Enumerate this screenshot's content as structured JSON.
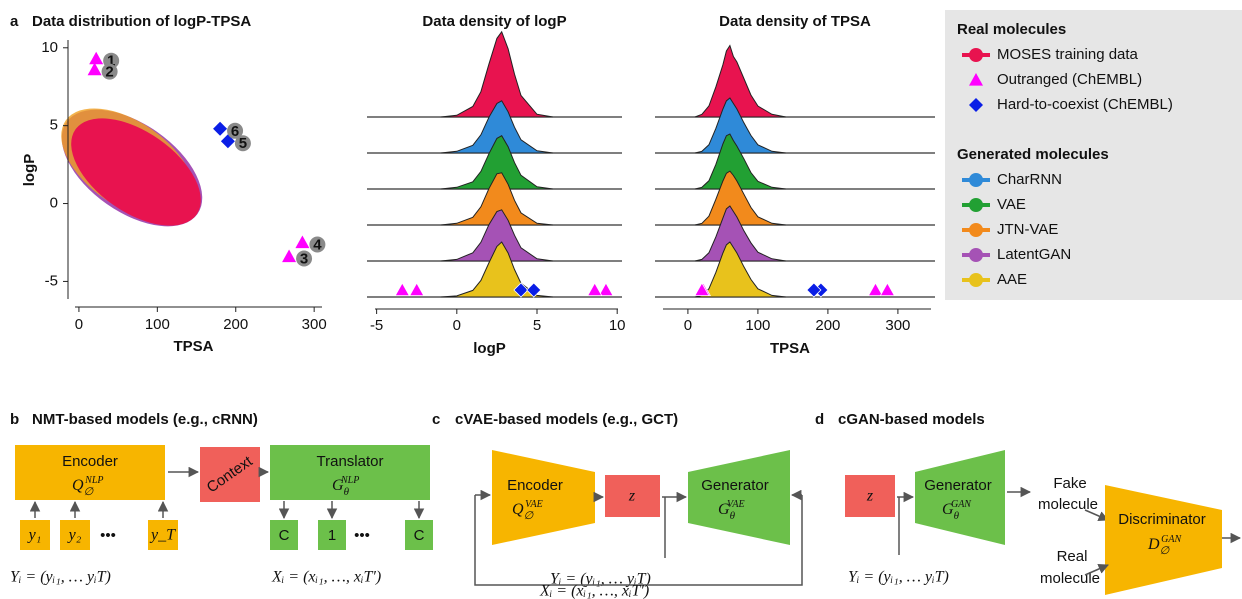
{
  "chart_data": [
    {
      "type": "scatter",
      "panel_label": "a",
      "title": "Data distribution of logP-TPSA",
      "x_label": "TPSA",
      "y_label": "logP",
      "xlim": [
        -5,
        310
      ],
      "ylim": [
        -6,
        10.5
      ],
      "xticks": [
        0,
        100,
        200,
        300
      ],
      "yticks": [
        -5,
        0,
        5,
        10
      ],
      "series": [
        {
          "name": "Outranged (ChEMBL)",
          "color": "#ff00ff",
          "marker": "triangle",
          "x": [
            22,
            20,
            268,
            285
          ],
          "values": [
            9.3,
            8.6,
            -3.4,
            -2.5
          ],
          "point_labels": [
            "1",
            "2",
            "3",
            "4"
          ]
        },
        {
          "name": "Hard-to-coexist (ChEMBL)",
          "color": "#0a1ee6",
          "marker": "diamond",
          "x": [
            190,
            180
          ],
          "values": [
            4.0,
            4.8
          ],
          "point_labels": [
            "5",
            "6"
          ]
        }
      ]
    },
    {
      "type": "ridgeline",
      "title": "Data density of logP",
      "x_label": "logP",
      "xlim": [
        -5.6,
        10.3
      ],
      "xticks": [
        -5,
        0,
        5,
        10
      ],
      "x": [
        -1,
        0,
        1,
        1.5,
        2,
        2.5,
        2.8,
        3.2,
        3.6,
        4,
        5,
        6
      ],
      "series": [
        {
          "name": "MOSES training data",
          "color": "#e8134f",
          "values": [
            0,
            0.03,
            0.19,
            0.46,
            0.96,
            1.43,
            1.55,
            1.24,
            0.78,
            0.39,
            0.05,
            0
          ]
        },
        {
          "name": "CharRNN",
          "color": "#2f8ad8",
          "values": [
            0,
            0.03,
            0.14,
            0.33,
            0.65,
            0.9,
            0.95,
            0.75,
            0.47,
            0.24,
            0.04,
            0
          ]
        },
        {
          "name": "VAE",
          "color": "#22a033",
          "values": [
            0,
            0.03,
            0.13,
            0.32,
            0.64,
            0.92,
            0.97,
            0.77,
            0.48,
            0.25,
            0.04,
            0
          ]
        },
        {
          "name": "JTN-VAE",
          "color": "#f28a1c",
          "values": [
            0,
            0.03,
            0.14,
            0.33,
            0.66,
            0.93,
            0.95,
            0.74,
            0.45,
            0.22,
            0.03,
            0
          ]
        },
        {
          "name": "LatentGAN",
          "color": "#a552b5",
          "values": [
            0,
            0.03,
            0.15,
            0.34,
            0.66,
            0.9,
            0.93,
            0.74,
            0.47,
            0.24,
            0.04,
            0
          ]
        },
        {
          "name": "AAE",
          "color": "#e8c21c",
          "values": [
            0,
            0.02,
            0.12,
            0.3,
            0.62,
            0.92,
            1,
            0.8,
            0.5,
            0.25,
            0.03,
            0
          ]
        }
      ]
    },
    {
      "type": "ridgeline",
      "title": "Data density of TPSA",
      "x_label": "TPSA",
      "xlim": [
        -47,
        353
      ],
      "xticks": [
        0,
        100,
        200,
        300
      ],
      "x": [
        10,
        20,
        30,
        40,
        50,
        55,
        60,
        65,
        70,
        80,
        90,
        100,
        120,
        140
      ],
      "series": [
        {
          "name": "MOSES training data",
          "color": "#e8134f",
          "values": [
            0,
            0.05,
            0.2,
            0.55,
            0.95,
            1.2,
            1.3,
            1.1,
            1.0,
            0.7,
            0.4,
            0.2,
            0.05,
            0
          ]
        },
        {
          "name": "CharRNN",
          "color": "#2f8ad8",
          "values": [
            0,
            0.03,
            0.15,
            0.45,
            0.8,
            0.95,
            1,
            0.9,
            0.8,
            0.55,
            0.32,
            0.15,
            0.03,
            0
          ]
        },
        {
          "name": "VAE",
          "color": "#22a033",
          "values": [
            0,
            0.03,
            0.15,
            0.45,
            0.82,
            0.97,
            1,
            0.88,
            0.78,
            0.55,
            0.3,
            0.14,
            0.03,
            0
          ]
        },
        {
          "name": "JTN-VAE",
          "color": "#f28a1c",
          "values": [
            0,
            0.03,
            0.16,
            0.47,
            0.8,
            0.94,
            0.98,
            0.9,
            0.8,
            0.56,
            0.32,
            0.15,
            0.03,
            0
          ]
        },
        {
          "name": "LatentGAN",
          "color": "#a552b5",
          "values": [
            0,
            0.03,
            0.15,
            0.44,
            0.78,
            0.95,
            1,
            0.9,
            0.8,
            0.55,
            0.33,
            0.16,
            0.04,
            0
          ]
        },
        {
          "name": "AAE",
          "color": "#e8c21c",
          "values": [
            0,
            0.03,
            0.15,
            0.45,
            0.8,
            0.95,
            1,
            0.9,
            0.8,
            0.55,
            0.32,
            0.15,
            0.03,
            0
          ]
        }
      ]
    }
  ],
  "legend": {
    "real_title": "Real molecules",
    "generated_title": "Generated molecules"
  },
  "panel_b": {
    "label": "b",
    "title": "NMT-based models (e.g., cRNN)",
    "encoder": "Encoder",
    "encoder_symbol": {
      "base": "Q",
      "sub": "∅",
      "sup": "NLP"
    },
    "context": "Context",
    "translator": "Translator",
    "translator_symbol": {
      "base": "G",
      "sub": "θ",
      "sup": "NLP"
    },
    "inputs": [
      "y₁",
      "y₂",
      "y_T"
    ],
    "dots": "•••",
    "outputs": [
      "C",
      "1",
      "C"
    ],
    "input_formula": "Yᵢ = (yᵢ₁, … yᵢT)",
    "output_formula": "Xᵢ = (xᵢ₁, …, xᵢT′)"
  },
  "panel_c": {
    "label": "c",
    "title": "cVAE-based models (e.g., GCT)",
    "encoder": "Encoder",
    "encoder_symbol": {
      "base": "Q",
      "sub": "∅",
      "sup": "VAE"
    },
    "latent": "z",
    "generator": "Generator",
    "generator_symbol": {
      "base": "G",
      "sub": "θ",
      "sup": "VAE"
    },
    "condition_formula": "Yᵢ = (yᵢ₁, … yᵢT)",
    "output_formula": "Xᵢ = (xᵢ₁, …, xᵢT′)"
  },
  "panel_d": {
    "label": "d",
    "title": "cGAN-based models",
    "latent": "z",
    "generator": "Generator",
    "generator_symbol": {
      "base": "G",
      "sub": "θ",
      "sup": "GAN"
    },
    "fake": [
      "Fake",
      "molecule"
    ],
    "real": [
      "Real",
      "molecule"
    ],
    "discriminator": "Discriminator",
    "discriminator_symbol": {
      "base": "D",
      "sub": "∅",
      "sup": "GAN"
    },
    "condition_formula": "Yᵢ = (yᵢ₁, … yᵢT)"
  }
}
